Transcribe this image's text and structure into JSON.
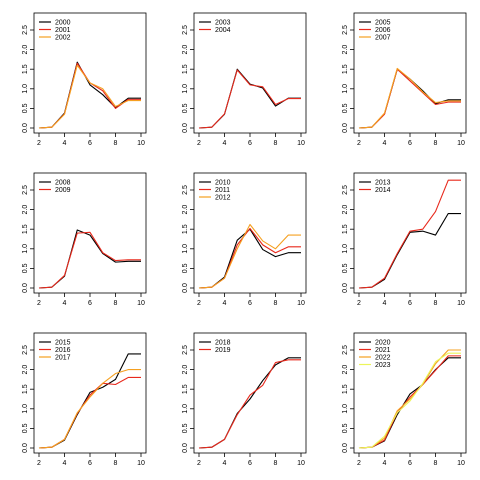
{
  "chart_data": [
    {
      "type": "line",
      "x": [
        2,
        3,
        4,
        5,
        6,
        7,
        8,
        9,
        10
      ],
      "xticks": [
        2,
        4,
        6,
        8,
        10
      ],
      "yticks": [
        "0.0",
        "0.5",
        "1.0",
        "1.5",
        "2.0",
        "2.5"
      ],
      "xlim": [
        2,
        10
      ],
      "ylim": [
        0,
        2.5
      ],
      "legend_position": "top-left",
      "series": [
        {
          "name": "2000",
          "color": "#000000",
          "values": [
            0,
            0.02,
            0.38,
            1.68,
            1.1,
            0.85,
            0.52,
            0.76,
            0.76
          ]
        },
        {
          "name": "2001",
          "color": "#e8291c",
          "values": [
            0,
            0.02,
            0.36,
            1.65,
            1.15,
            0.95,
            0.5,
            0.73,
            0.73
          ]
        },
        {
          "name": "2002",
          "color": "#f5a020",
          "values": [
            0,
            0.02,
            0.35,
            1.6,
            1.15,
            1.0,
            0.55,
            0.7,
            0.7
          ]
        }
      ]
    },
    {
      "type": "line",
      "x": [
        2,
        3,
        4,
        5,
        6,
        7,
        8,
        9,
        10
      ],
      "xticks": [
        2,
        4,
        6,
        8,
        10
      ],
      "yticks": [
        "0.0",
        "0.5",
        "1.0",
        "1.5",
        "2.0",
        "2.5"
      ],
      "xlim": [
        2,
        10
      ],
      "ylim": [
        0,
        2.5
      ],
      "legend_position": "top-left",
      "series": [
        {
          "name": "2003",
          "color": "#000000",
          "values": [
            0,
            0.02,
            0.35,
            1.5,
            1.12,
            1.02,
            0.56,
            0.76,
            0.76
          ]
        },
        {
          "name": "2004",
          "color": "#e8291c",
          "values": [
            0,
            0.02,
            0.36,
            1.48,
            1.1,
            1.05,
            0.6,
            0.75,
            0.75
          ]
        }
      ]
    },
    {
      "type": "line",
      "x": [
        2,
        3,
        4,
        5,
        6,
        7,
        8,
        9,
        10
      ],
      "xticks": [
        2,
        4,
        6,
        8,
        10
      ],
      "yticks": [
        "0.0",
        "0.5",
        "1.0",
        "1.5",
        "2.0",
        "2.5"
      ],
      "xlim": [
        2,
        10
      ],
      "ylim": [
        0,
        2.5
      ],
      "legend_position": "top-left",
      "series": [
        {
          "name": "2005",
          "color": "#000000",
          "values": [
            0,
            0.02,
            0.36,
            1.5,
            1.25,
            0.95,
            0.62,
            0.72,
            0.72
          ]
        },
        {
          "name": "2006",
          "color": "#e8291c",
          "values": [
            0,
            0.02,
            0.35,
            1.5,
            1.2,
            0.9,
            0.6,
            0.66,
            0.66
          ]
        },
        {
          "name": "2007",
          "color": "#f5a020",
          "values": [
            0,
            0.02,
            0.38,
            1.52,
            1.25,
            0.92,
            0.65,
            0.69,
            0.69
          ]
        }
      ]
    },
    {
      "type": "line",
      "x": [
        2,
        3,
        4,
        5,
        6,
        7,
        8,
        9,
        10
      ],
      "xticks": [
        2,
        4,
        6,
        8,
        10
      ],
      "yticks": [
        "0.0",
        "0.5",
        "1.0",
        "1.5",
        "2.0",
        "2.5"
      ],
      "xlim": [
        2,
        10
      ],
      "ylim": [
        0,
        2.5
      ],
      "legend_position": "top-left",
      "series": [
        {
          "name": "2008",
          "color": "#000000",
          "values": [
            0,
            0.02,
            0.3,
            1.48,
            1.35,
            0.88,
            0.66,
            0.68,
            0.68
          ]
        },
        {
          "name": "2009",
          "color": "#e8291c",
          "values": [
            0,
            0.02,
            0.32,
            1.4,
            1.42,
            0.9,
            0.7,
            0.72,
            0.72
          ]
        }
      ]
    },
    {
      "type": "line",
      "x": [
        2,
        3,
        4,
        5,
        6,
        7,
        8,
        9,
        10
      ],
      "xticks": [
        2,
        4,
        6,
        8,
        10
      ],
      "yticks": [
        "0.0",
        "0.5",
        "1.0",
        "1.5",
        "2.0",
        "2.5"
      ],
      "xlim": [
        2,
        10
      ],
      "ylim": [
        0,
        2.5
      ],
      "legend_position": "top-left",
      "series": [
        {
          "name": "2010",
          "color": "#000000",
          "values": [
            0,
            0.02,
            0.28,
            1.22,
            1.5,
            0.98,
            0.8,
            0.9,
            0.9
          ]
        },
        {
          "name": "2011",
          "color": "#e8291c",
          "values": [
            0,
            0.02,
            0.25,
            1.1,
            1.52,
            1.1,
            0.9,
            1.05,
            1.05
          ]
        },
        {
          "name": "2012",
          "color": "#f5a020",
          "values": [
            0,
            0.02,
            0.25,
            1.0,
            1.62,
            1.2,
            1.0,
            1.35,
            1.35
          ]
        }
      ]
    },
    {
      "type": "line",
      "x": [
        2,
        3,
        4,
        5,
        6,
        7,
        8,
        9,
        10
      ],
      "xticks": [
        2,
        4,
        6,
        8,
        10
      ],
      "yticks": [
        "0.0",
        "0.5",
        "1.0",
        "1.5",
        "2.0",
        "2.5"
      ],
      "xlim": [
        2,
        10
      ],
      "ylim": [
        0,
        2.5
      ],
      "legend_position": "top-left",
      "series": [
        {
          "name": "2013",
          "color": "#000000",
          "values": [
            0,
            0.02,
            0.22,
            0.85,
            1.42,
            1.45,
            1.35,
            1.9,
            1.9
          ]
        },
        {
          "name": "2014",
          "color": "#e8291c",
          "values": [
            0,
            0.02,
            0.25,
            0.88,
            1.45,
            1.5,
            1.95,
            2.75,
            2.75
          ]
        }
      ]
    },
    {
      "type": "line",
      "x": [
        2,
        3,
        4,
        5,
        6,
        7,
        8,
        9,
        10
      ],
      "xticks": [
        2,
        4,
        6,
        8,
        10
      ],
      "yticks": [
        "0.0",
        "0.5",
        "1.0",
        "1.5",
        "2.0",
        "2.5"
      ],
      "xlim": [
        2,
        10
      ],
      "ylim": [
        0,
        2.5
      ],
      "legend_position": "top-left",
      "series": [
        {
          "name": "2015",
          "color": "#000000",
          "values": [
            0,
            0.02,
            0.2,
            0.85,
            1.42,
            1.55,
            1.75,
            2.4,
            2.4
          ]
        },
        {
          "name": "2016",
          "color": "#e8291c",
          "values": [
            0,
            0.02,
            0.22,
            0.88,
            1.35,
            1.65,
            1.62,
            1.8,
            1.8
          ]
        },
        {
          "name": "2017",
          "color": "#f5a020",
          "values": [
            0,
            0.02,
            0.22,
            0.9,
            1.3,
            1.65,
            1.9,
            2.0,
            2.0
          ]
        }
      ]
    },
    {
      "type": "line",
      "x": [
        2,
        3,
        4,
        5,
        6,
        7,
        8,
        9,
        10
      ],
      "xticks": [
        2,
        4,
        6,
        8,
        10
      ],
      "yticks": [
        "0.0",
        "0.5",
        "1.0",
        "1.5",
        "2.0",
        "2.5"
      ],
      "xlim": [
        2,
        10
      ],
      "ylim": [
        0,
        2.5
      ],
      "legend_position": "top-left",
      "series": [
        {
          "name": "2018",
          "color": "#000000",
          "values": [
            0,
            0.02,
            0.22,
            0.88,
            1.25,
            1.72,
            2.12,
            2.3,
            2.3
          ]
        },
        {
          "name": "2019",
          "color": "#e8291c",
          "values": [
            0,
            0.02,
            0.22,
            0.85,
            1.35,
            1.6,
            2.18,
            2.25,
            2.25
          ]
        }
      ]
    },
    {
      "type": "line",
      "x": [
        2,
        3,
        4,
        5,
        6,
        7,
        8,
        9,
        10
      ],
      "xticks": [
        2,
        4,
        6,
        8,
        10
      ],
      "yticks": [
        "0.0",
        "0.5",
        "1.0",
        "1.5",
        "2.0",
        "2.5"
      ],
      "xlim": [
        2,
        10
      ],
      "ylim": [
        0,
        2.5
      ],
      "legend_position": "top-left",
      "series": [
        {
          "name": "2020",
          "color": "#000000",
          "values": [
            0,
            0.02,
            0.18,
            0.85,
            1.38,
            1.62,
            2.0,
            2.3,
            2.3
          ]
        },
        {
          "name": "2021",
          "color": "#e8291c",
          "values": [
            0,
            0.02,
            0.2,
            0.9,
            1.3,
            1.62,
            1.98,
            2.35,
            2.35
          ]
        },
        {
          "name": "2022",
          "color": "#f5a020",
          "values": [
            0,
            0.02,
            0.25,
            0.95,
            1.25,
            1.62,
            2.15,
            2.5,
            2.5
          ]
        },
        {
          "name": "2023",
          "color": "#ecf55a",
          "values": [
            0,
            0.02,
            0.3,
            0.9,
            1.2,
            1.65,
            2.2,
            2.42,
            2.42
          ]
        }
      ]
    }
  ]
}
